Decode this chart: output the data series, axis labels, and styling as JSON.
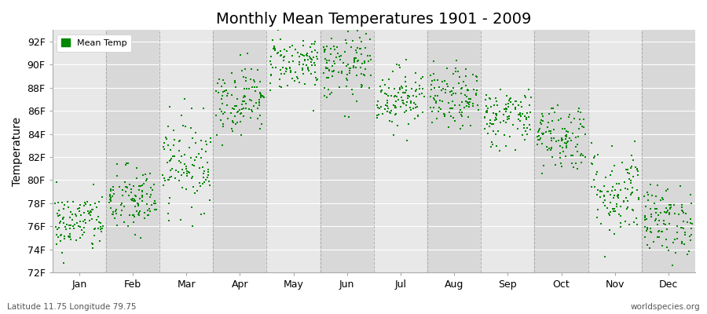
{
  "title": "Monthly Mean Temperatures 1901 - 2009",
  "ylabel": "Temperature",
  "xlabel_months": [
    "Jan",
    "Feb",
    "Mar",
    "Apr",
    "May",
    "Jun",
    "Jul",
    "Aug",
    "Sep",
    "Oct",
    "Nov",
    "Dec"
  ],
  "ylim": [
    72,
    93
  ],
  "yticks": [
    72,
    74,
    76,
    78,
    80,
    82,
    84,
    86,
    88,
    90,
    92
  ],
  "ytick_labels": [
    "72F",
    "74F",
    "76F",
    "78F",
    "80F",
    "82F",
    "84F",
    "86F",
    "88F",
    "90F",
    "92F"
  ],
  "dot_color": "#008800",
  "dot_size": 3,
  "background_color": "#E8E8E8",
  "alt_band_color": "#D8D8D8",
  "grid_color": "#888888",
  "title_fontsize": 14,
  "axis_fontsize": 10,
  "tick_fontsize": 9,
  "legend_label": "Mean Temp",
  "footnote_left": "Latitude 11.75 Longitude 79.75",
  "footnote_right": "worldspecies.org",
  "monthly_mean": [
    76.3,
    78.2,
    81.5,
    87.0,
    90.2,
    89.8,
    87.2,
    87.0,
    85.5,
    83.8,
    79.0,
    76.5
  ],
  "monthly_std": [
    1.3,
    1.5,
    2.0,
    1.5,
    1.2,
    1.5,
    1.3,
    1.3,
    1.3,
    1.5,
    2.0,
    1.5
  ],
  "n_years": 109,
  "seed": 42
}
